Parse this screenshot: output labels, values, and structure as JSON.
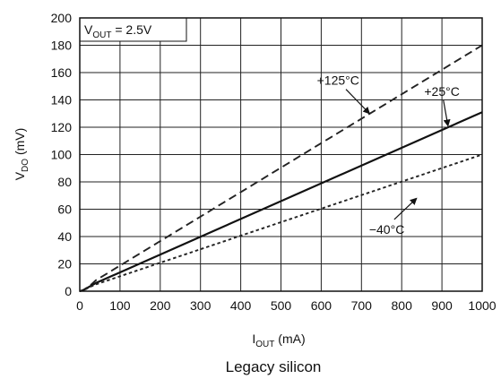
{
  "chart_data": {
    "type": "line",
    "title": "",
    "caption": "Legacy silicon",
    "annotation": {
      "main": "V",
      "sub": "OUT",
      "rest": " = 2.5V"
    },
    "xlabel": {
      "main": "I",
      "sub": "OUT",
      "rest": " (mA)"
    },
    "ylabel": {
      "main": "V",
      "sub": "DO",
      "rest": " (mV)"
    },
    "xlim": [
      0,
      1000
    ],
    "ylim": [
      0,
      200
    ],
    "xticks": [
      0,
      100,
      200,
      300,
      400,
      500,
      600,
      700,
      800,
      900,
      1000
    ],
    "yticks": [
      0,
      20,
      40,
      60,
      80,
      100,
      120,
      140,
      160,
      180,
      200
    ],
    "grid": true,
    "series": [
      {
        "name": "+125°C",
        "style": "dashed",
        "color": "#222222",
        "x": [
          0,
          10,
          25,
          40,
          1000
        ],
        "y": [
          0,
          1,
          4,
          8,
          180
        ]
      },
      {
        "name": "+25°C",
        "style": "solid",
        "color": "#111111",
        "x": [
          0,
          10,
          25,
          40,
          1000
        ],
        "y": [
          0,
          1,
          3.5,
          6,
          131
        ]
      },
      {
        "name": "−40°C",
        "style": "dotted",
        "color": "#222222",
        "x": [
          0,
          10,
          25,
          40,
          1000
        ],
        "y": [
          0,
          0.8,
          3,
          5,
          100
        ]
      }
    ],
    "series_labels": [
      {
        "series": 0,
        "text": "+125°C",
        "text_at": [
          642,
          151
        ],
        "arrow_to": [
          720,
          130
        ]
      },
      {
        "series": 1,
        "text": "+25°C",
        "text_at": [
          900,
          143
        ],
        "arrow_to": [
          915,
          121
        ]
      },
      {
        "series": 2,
        "text": "−40°C",
        "text_at": [
          763,
          42
        ],
        "arrow_to": [
          837,
          68
        ]
      }
    ]
  }
}
